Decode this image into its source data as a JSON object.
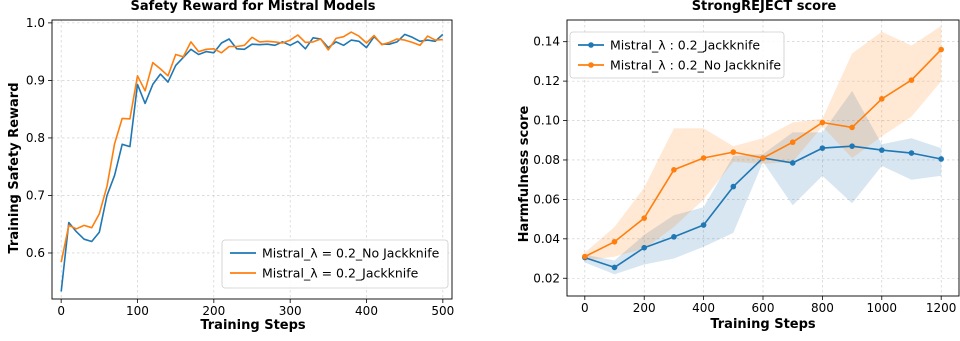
{
  "chart_data": [
    {
      "type": "line",
      "title": "Safety Reward for Mistral Models",
      "xlabel": "Training Steps",
      "ylabel": "Training Safety Reward",
      "xlim": [
        -12,
        512
      ],
      "ylim": [
        0.52,
        1.005
      ],
      "xticks": [
        0,
        100,
        200,
        300,
        400,
        500
      ],
      "yticks": [
        0.6,
        0.7,
        0.8,
        0.9,
        1.0
      ],
      "ytick_labels": [
        "0.6",
        "0.7",
        "0.8",
        "0.9",
        "1.0"
      ],
      "grid": true,
      "legend_position": "lower-right",
      "series": [
        {
          "name": "Mistral_$\\lambda=0.2$_No Jackknife",
          "name_display": "Mistral_λ = 0.2_No Jackknife",
          "color": "#1f77b4",
          "x": [
            0,
            10,
            20,
            30,
            40,
            50,
            60,
            70,
            80,
            90,
            100,
            110,
            120,
            130,
            140,
            150,
            160,
            170,
            180,
            190,
            200,
            210,
            220,
            230,
            240,
            250,
            260,
            270,
            280,
            290,
            300,
            310,
            320,
            330,
            340,
            350,
            360,
            370,
            380,
            390,
            400,
            410,
            420,
            430,
            440,
            450,
            460,
            470,
            480,
            490,
            500
          ],
          "values": [
            0.533,
            0.653,
            0.637,
            0.624,
            0.62,
            0.636,
            0.7,
            0.735,
            0.789,
            0.785,
            0.893,
            0.86,
            0.893,
            0.911,
            0.897,
            0.926,
            0.94,
            0.954,
            0.945,
            0.95,
            0.948,
            0.965,
            0.972,
            0.955,
            0.954,
            0.963,
            0.962,
            0.963,
            0.961,
            0.967,
            0.961,
            0.968,
            0.955,
            0.974,
            0.972,
            0.957,
            0.967,
            0.961,
            0.97,
            0.968,
            0.957,
            0.976,
            0.963,
            0.963,
            0.967,
            0.98,
            0.975,
            0.968,
            0.97,
            0.968,
            0.98
          ]
        },
        {
          "name": "Mistral_$\\lambda=0.2$_Jackknife",
          "name_display": "Mistral_λ = 0.2_Jackknife",
          "color": "#ff7f0e",
          "x": [
            0,
            10,
            20,
            30,
            40,
            50,
            60,
            70,
            80,
            90,
            100,
            110,
            120,
            130,
            140,
            150,
            160,
            170,
            180,
            190,
            200,
            210,
            220,
            230,
            240,
            250,
            260,
            270,
            280,
            290,
            300,
            310,
            320,
            330,
            340,
            350,
            360,
            370,
            380,
            390,
            400,
            410,
            420,
            430,
            440,
            450,
            460,
            470,
            480,
            490,
            500
          ],
          "values": [
            0.584,
            0.648,
            0.642,
            0.648,
            0.644,
            0.668,
            0.716,
            0.79,
            0.834,
            0.833,
            0.908,
            0.882,
            0.931,
            0.92,
            0.908,
            0.945,
            0.941,
            0.967,
            0.95,
            0.954,
            0.955,
            0.948,
            0.959,
            0.959,
            0.961,
            0.975,
            0.967,
            0.968,
            0.967,
            0.965,
            0.97,
            0.979,
            0.966,
            0.967,
            0.972,
            0.953,
            0.973,
            0.976,
            0.984,
            0.977,
            0.965,
            0.978,
            0.962,
            0.966,
            0.972,
            0.97,
            0.966,
            0.961,
            0.977,
            0.97,
            0.971
          ]
        }
      ]
    },
    {
      "type": "line",
      "title": "StrongREJECT score",
      "xlabel": "Training Steps",
      "ylabel": "Harmfulness score",
      "xlim": [
        -60,
        1260
      ],
      "ylim": [
        0.011,
        0.151
      ],
      "xticks": [
        0,
        200,
        400,
        600,
        800,
        1000,
        1200
      ],
      "yticks": [
        0.02,
        0.04,
        0.06,
        0.08,
        0.1,
        0.12,
        0.14
      ],
      "ytick_labels": [
        "0.02",
        "0.04",
        "0.06",
        "0.08",
        "0.10",
        "0.12",
        "0.14"
      ],
      "grid": true,
      "legend_position": "upper-left",
      "series": [
        {
          "name": "Mistral_$\\lambda: 0.2$_Jackknife",
          "name_display": "Mistral_λ : 0.2_Jackknife",
          "color": "#1f77b4",
          "x": [
            0,
            100,
            200,
            300,
            400,
            500,
            600,
            700,
            800,
            900,
            1000,
            1100,
            1200
          ],
          "values": [
            0.0305,
            0.0255,
            0.0355,
            0.041,
            0.047,
            0.0665,
            0.081,
            0.0785,
            0.086,
            0.087,
            0.085,
            0.0835,
            0.0805
          ],
          "band_low": [
            0.028,
            0.022,
            0.027,
            0.03,
            0.036,
            0.043,
            0.079,
            0.057,
            0.072,
            0.058,
            0.077,
            0.07,
            0.072
          ],
          "band_high": [
            0.032,
            0.029,
            0.042,
            0.052,
            0.056,
            0.082,
            0.083,
            0.094,
            0.094,
            0.115,
            0.088,
            0.091,
            0.086
          ]
        },
        {
          "name": "Mistral_$\\lambda: 0.2$_No Jackknife",
          "name_display": "Mistral_λ : 0.2_No Jackknife",
          "color": "#ff7f0e",
          "x": [
            0,
            100,
            200,
            300,
            400,
            500,
            600,
            700,
            800,
            900,
            1000,
            1100,
            1200
          ],
          "values": [
            0.031,
            0.0385,
            0.0505,
            0.075,
            0.081,
            0.084,
            0.081,
            0.089,
            0.099,
            0.0965,
            0.111,
            0.1205,
            0.136
          ],
          "band_low": [
            0.029,
            0.031,
            0.035,
            0.046,
            0.06,
            0.079,
            0.078,
            0.079,
            0.097,
            0.081,
            0.092,
            0.102,
            0.12
          ],
          "band_high": [
            0.033,
            0.046,
            0.066,
            0.096,
            0.096,
            0.087,
            0.091,
            0.099,
            0.101,
            0.134,
            0.145,
            0.138,
            0.148
          ]
        }
      ]
    }
  ]
}
